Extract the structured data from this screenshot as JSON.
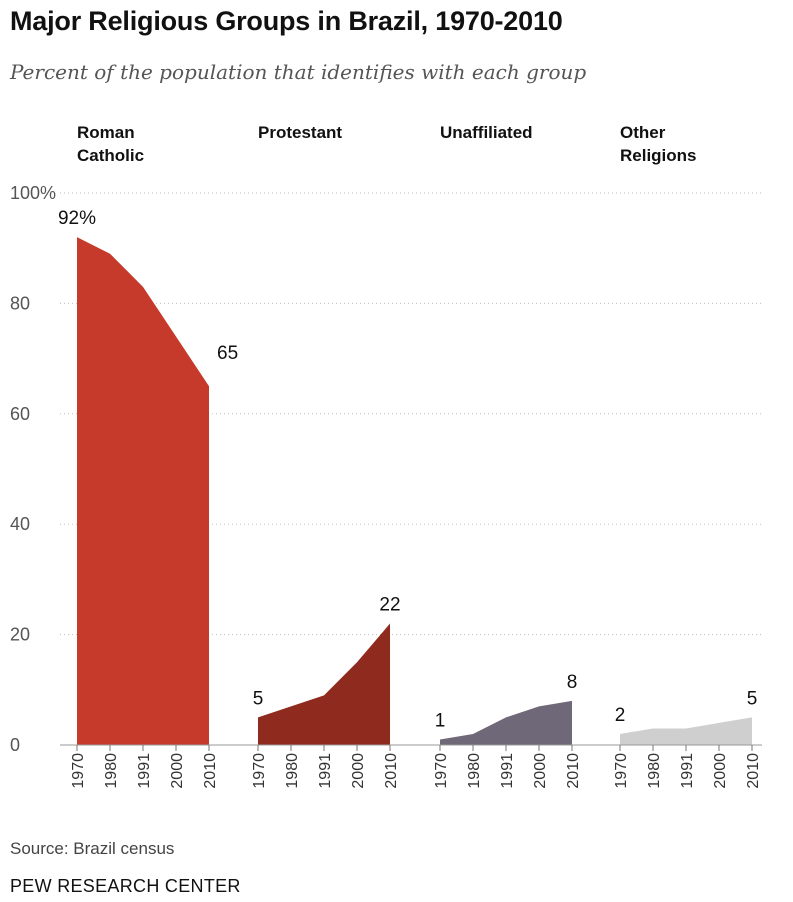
{
  "title": "Major Religious Groups in Brazil, 1970-2010",
  "subtitle": "Percent of the population that identifies with each group",
  "source": "Source: Brazil census",
  "organization": "PEW RESEARCH CENTER",
  "chart_data": {
    "type": "area",
    "title": "Major Religious Groups in Brazil, 1970-2010",
    "subtitle": "Percent of the population that identifies with each group",
    "xlabel": "",
    "ylabel": "",
    "x": [
      "1970",
      "1980",
      "1991",
      "2000",
      "2010"
    ],
    "ylim": [
      0,
      100
    ],
    "yticks": [
      0,
      20,
      40,
      60,
      80,
      100
    ],
    "ytick_labels": [
      "0",
      "20",
      "40",
      "60",
      "80",
      "100%"
    ],
    "grid": true,
    "series": [
      {
        "name": "Roman Catholic",
        "values": [
          92,
          89,
          83,
          74,
          65
        ],
        "color": "#c63a2b",
        "labels": [
          "92%",
          "",
          "",
          "",
          "65"
        ]
      },
      {
        "name": "Protestant",
        "values": [
          5,
          7,
          9,
          15,
          22
        ],
        "color": "#8f2a1f",
        "labels": [
          "5",
          "",
          "",
          "",
          "22"
        ]
      },
      {
        "name": "Unaffiliated",
        "values": [
          1,
          2,
          5,
          7,
          8
        ],
        "color": "#6f6878",
        "labels": [
          "1",
          "",
          "",
          "",
          "8"
        ]
      },
      {
        "name": "Other Religions",
        "values": [
          2,
          3,
          3,
          4,
          5
        ],
        "color": "#cfcfcf",
        "labels": [
          "2",
          "",
          "",
          "",
          "5"
        ]
      }
    ]
  }
}
